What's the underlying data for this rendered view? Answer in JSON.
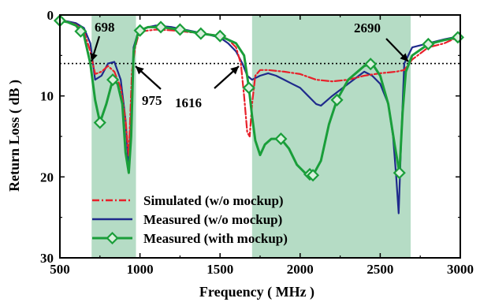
{
  "chart_data": {
    "type": "line",
    "xlabel": "Frequency ( MHz )",
    "ylabel": "Return Loss ( dB )",
    "xlim": [
      500,
      3000
    ],
    "ylim": [
      0,
      30
    ],
    "y_inverted": true,
    "xticks": [
      500,
      1000,
      1500,
      2000,
      2500,
      3000
    ],
    "yticks": [
      0,
      10,
      20,
      30
    ],
    "grid": false,
    "legend_position": "bottom-left",
    "reference_line": {
      "y": 6,
      "style": "dotted",
      "color": "#000000"
    },
    "bands": [
      {
        "x0": 698,
        "x1": 975,
        "color": "#b5dcc5"
      },
      {
        "x0": 1700,
        "x1": 2690,
        "color": "#b5dcc5"
      }
    ],
    "annotations": [
      {
        "text": "698",
        "x": 698,
        "y": 6
      },
      {
        "text": "975",
        "x": 975,
        "y": 6
      },
      {
        "text": "1616",
        "x": 1616,
        "y": 6
      },
      {
        "text": "2690",
        "x": 2690,
        "y": 6
      }
    ],
    "series": [
      {
        "name": "Simulated (w/o mockup)",
        "color": "#e8202a",
        "style": "dashdot",
        "x": [
          500,
          600,
          650,
          690,
          720,
          760,
          800,
          840,
          880,
          910,
          930,
          950,
          970,
          990,
          1020,
          1100,
          1200,
          1300,
          1400,
          1500,
          1550,
          1600,
          1630,
          1650,
          1670,
          1685,
          1700,
          1720,
          1750,
          1800,
          1900,
          2000,
          2100,
          2200,
          2300,
          2400,
          2500,
          2600,
          2650,
          2700,
          2800,
          2900,
          3000
        ],
        "y": [
          0.5,
          1.2,
          2.0,
          4.5,
          7.3,
          7.0,
          6.3,
          7.0,
          9.0,
          13.0,
          17.5,
          7.0,
          4.0,
          2.5,
          2.0,
          1.8,
          1.9,
          2.1,
          2.3,
          2.6,
          3.0,
          4.0,
          6.0,
          10.0,
          14.5,
          15.0,
          11.0,
          7.5,
          6.8,
          6.8,
          7.0,
          7.3,
          8.0,
          8.2,
          8.0,
          7.5,
          7.2,
          7.0,
          6.8,
          5.5,
          4.0,
          3.5,
          2.6
        ]
      },
      {
        "name": "Measured (w/o mockup)",
        "color": "#1f2a8c",
        "style": "solid",
        "x": [
          500,
          550,
          600,
          650,
          690,
          720,
          760,
          800,
          840,
          880,
          910,
          930,
          945,
          960,
          990,
          1050,
          1100,
          1200,
          1300,
          1400,
          1500,
          1550,
          1600,
          1640,
          1670,
          1700,
          1750,
          1800,
          1850,
          1900,
          1950,
          2000,
          2050,
          2100,
          2130,
          2200,
          2300,
          2400,
          2450,
          2500,
          2550,
          2580,
          2600,
          2615,
          2630,
          2650,
          2700,
          2800,
          2900,
          3000
        ],
        "y": [
          0.6,
          0.8,
          1.0,
          1.6,
          3.5,
          8.0,
          7.5,
          6.0,
          5.8,
          8.0,
          13.0,
          19.0,
          12.0,
          4.0,
          2.0,
          1.5,
          1.3,
          1.5,
          1.9,
          2.3,
          2.8,
          3.5,
          4.5,
          6.0,
          7.5,
          8.0,
          7.5,
          7.2,
          7.5,
          8.0,
          8.5,
          9.0,
          10.0,
          11.0,
          11.2,
          10.0,
          8.5,
          7.0,
          7.5,
          8.5,
          11.0,
          15.0,
          20.0,
          24.5,
          16.0,
          6.0,
          4.0,
          3.5,
          3.0,
          2.6
        ]
      },
      {
        "name": "Measured (with mockup)",
        "color": "#1a9e3a",
        "style": "solid",
        "marker": "diamond",
        "x": [
          500,
          550,
          600,
          650,
          690,
          720,
          750,
          790,
          830,
          860,
          890,
          910,
          930,
          945,
          960,
          990,
          1050,
          1130,
          1250,
          1380,
          1500,
          1600,
          1650,
          1680,
          1700,
          1720,
          1750,
          1780,
          1820,
          1880,
          1930,
          1980,
          2030,
          2080,
          2130,
          2180,
          2230,
          2300,
          2400,
          2450,
          2500,
          2550,
          2590,
          2620,
          2640,
          2660,
          2700,
          2800,
          2900,
          3000
        ],
        "y": [
          0.7,
          0.9,
          1.3,
          2.5,
          6.0,
          10.5,
          13.3,
          11.0,
          8.0,
          8.5,
          11.0,
          17.0,
          19.5,
          15.0,
          4.5,
          2.0,
          1.5,
          1.5,
          1.8,
          2.3,
          2.6,
          3.5,
          5.0,
          9.0,
          12.5,
          15.5,
          17.3,
          16.0,
          15.3,
          15.3,
          16.5,
          18.5,
          19.5,
          19.8,
          18.0,
          13.5,
          10.5,
          8.0,
          6.3,
          6.0,
          7.5,
          11.0,
          16.0,
          19.5,
          12.0,
          7.0,
          5.0,
          3.6,
          3.1,
          2.7
        ],
        "marker_x": [
          500,
          630,
          750,
          830,
          1000,
          1130,
          1250,
          1380,
          1500,
          1680,
          1880,
          2060,
          2080,
          2230,
          2440,
          2620,
          2800,
          2985
        ]
      }
    ]
  }
}
